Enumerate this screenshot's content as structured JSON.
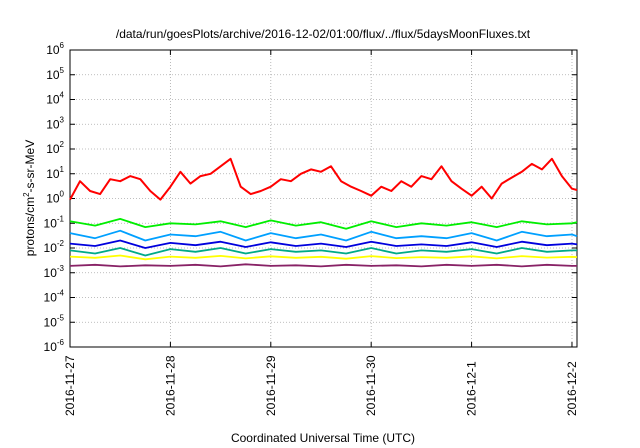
{
  "chart_data": {
    "type": "line",
    "title": "/data/run/goesPlots/archive/2016-12-02/01:00/flux/../flux/5daysMoonFluxes.txt",
    "xlabel": "Coordinated Universal Time (UTC)",
    "ylabel_parts": {
      "base": "protons/cm",
      "sup": "2",
      "rest": "-s-sr-MeV"
    },
    "y_scale": "log",
    "ylim": [
      1e-06,
      1000000.0
    ],
    "y_ticks": [
      {
        "base": "10",
        "exp": "-6",
        "value": 1e-06
      },
      {
        "base": "10",
        "exp": "-5",
        "value": 1e-05
      },
      {
        "base": "10",
        "exp": "-4",
        "value": 0.0001
      },
      {
        "base": "10",
        "exp": "-3",
        "value": 0.001
      },
      {
        "base": "10",
        "exp": "-2",
        "value": 0.01
      },
      {
        "base": "10",
        "exp": "-1",
        "value": 0.1
      },
      {
        "base": "10",
        "exp": "0",
        "value": 1
      },
      {
        "base": "10",
        "exp": "1",
        "value": 10
      },
      {
        "base": "10",
        "exp": "2",
        "value": 100
      },
      {
        "base": "10",
        "exp": "3",
        "value": 1000
      },
      {
        "base": "10",
        "exp": "4",
        "value": 10000
      },
      {
        "base": "10",
        "exp": "5",
        "value": 100000
      },
      {
        "base": "10",
        "exp": "6",
        "value": 1000000
      }
    ],
    "x_tick_labels": [
      "2016-11-27",
      "2016-11-28",
      "2016-11-29",
      "2016-11-30",
      "2016-12-1",
      "2016-12-2"
    ],
    "x_tick_days": [
      0,
      1,
      2,
      3,
      4,
      5
    ],
    "xlim_days": [
      0,
      5.05
    ],
    "grid": true,
    "legend": "none",
    "series": [
      {
        "color": "#ff0000",
        "days": [
          0,
          0.1,
          0.2,
          0.3,
          0.4,
          0.5,
          0.6,
          0.7,
          0.8,
          0.9,
          1.0,
          1.1,
          1.2,
          1.3,
          1.4,
          1.5,
          1.6,
          1.7,
          1.8,
          1.9,
          2.0,
          2.1,
          2.2,
          2.3,
          2.4,
          2.5,
          2.6,
          2.7,
          2.8,
          2.9,
          3.0,
          3.1,
          3.2,
          3.3,
          3.4,
          3.5,
          3.6,
          3.7,
          3.8,
          3.9,
          4.0,
          4.1,
          4.2,
          4.3,
          4.4,
          4.5,
          4.6,
          4.7,
          4.8,
          4.9,
          5.0,
          5.05
        ],
        "values": [
          0.9,
          5,
          2,
          1.5,
          6,
          5,
          8,
          6,
          2,
          0.9,
          3,
          12,
          4,
          8,
          10,
          20,
          40,
          3,
          1.5,
          2,
          3,
          6,
          5,
          10,
          15,
          12,
          20,
          5,
          3,
          2,
          1.3,
          3,
          2,
          5,
          3,
          8,
          6,
          20,
          5,
          2.5,
          1.3,
          3,
          1,
          4,
          7,
          12,
          25,
          15,
          40,
          8,
          2.5,
          2.2
        ]
      },
      {
        "color": "#00ee00",
        "days": [
          0,
          0.25,
          0.5,
          0.75,
          1.0,
          1.25,
          1.5,
          1.75,
          2.0,
          2.25,
          2.5,
          2.75,
          3.0,
          3.25,
          3.5,
          3.75,
          4.0,
          4.25,
          4.5,
          4.75,
          5.0,
          5.05
        ],
        "values": [
          0.12,
          0.08,
          0.15,
          0.07,
          0.1,
          0.09,
          0.12,
          0.07,
          0.13,
          0.08,
          0.11,
          0.06,
          0.12,
          0.07,
          0.1,
          0.08,
          0.11,
          0.07,
          0.12,
          0.09,
          0.1,
          0.11
        ]
      },
      {
        "color": "#00a0ff",
        "days": [
          0,
          0.25,
          0.5,
          0.75,
          1.0,
          1.25,
          1.5,
          1.75,
          2.0,
          2.25,
          2.5,
          2.75,
          3.0,
          3.25,
          3.5,
          3.75,
          4.0,
          4.25,
          4.5,
          4.75,
          5.0,
          5.05
        ],
        "values": [
          0.04,
          0.025,
          0.05,
          0.02,
          0.035,
          0.03,
          0.045,
          0.02,
          0.04,
          0.025,
          0.035,
          0.02,
          0.045,
          0.025,
          0.03,
          0.025,
          0.04,
          0.02,
          0.045,
          0.03,
          0.035,
          0.03
        ]
      },
      {
        "color": "#0000dd",
        "days": [
          0,
          0.25,
          0.5,
          0.75,
          1.0,
          1.25,
          1.5,
          1.75,
          2.0,
          2.25,
          2.5,
          2.75,
          3.0,
          3.25,
          3.5,
          3.75,
          4.0,
          4.25,
          4.5,
          4.75,
          5.0,
          5.05
        ],
        "values": [
          0.015,
          0.012,
          0.02,
          0.01,
          0.016,
          0.013,
          0.018,
          0.011,
          0.017,
          0.012,
          0.015,
          0.011,
          0.018,
          0.012,
          0.014,
          0.012,
          0.017,
          0.011,
          0.018,
          0.013,
          0.015,
          0.014
        ]
      },
      {
        "color": "#00aa88",
        "days": [
          0,
          0.25,
          0.5,
          0.75,
          1.0,
          1.25,
          1.5,
          1.75,
          2.0,
          2.25,
          2.5,
          2.75,
          3.0,
          3.25,
          3.5,
          3.75,
          4.0,
          4.25,
          4.5,
          4.75,
          5.0,
          5.05
        ],
        "values": [
          0.008,
          0.006,
          0.01,
          0.005,
          0.009,
          0.007,
          0.01,
          0.006,
          0.009,
          0.007,
          0.008,
          0.006,
          0.01,
          0.006,
          0.008,
          0.007,
          0.009,
          0.006,
          0.01,
          0.007,
          0.008,
          0.008
        ]
      },
      {
        "color": "#ffff00",
        "days": [
          0,
          0.25,
          0.5,
          0.75,
          1.0,
          1.25,
          1.5,
          1.75,
          2.0,
          2.25,
          2.5,
          2.75,
          3.0,
          3.25,
          3.5,
          3.75,
          4.0,
          4.25,
          4.5,
          4.75,
          5.0,
          5.05
        ],
        "values": [
          0.0045,
          0.004,
          0.005,
          0.0035,
          0.0045,
          0.004,
          0.0048,
          0.0038,
          0.0046,
          0.004,
          0.0044,
          0.0037,
          0.0047,
          0.0039,
          0.0043,
          0.004,
          0.0046,
          0.0038,
          0.0047,
          0.0041,
          0.0044,
          0.0043
        ]
      },
      {
        "color": "#882266",
        "days": [
          0,
          0.25,
          0.5,
          0.75,
          1.0,
          1.25,
          1.5,
          1.75,
          2.0,
          2.25,
          2.5,
          2.75,
          3.0,
          3.25,
          3.5,
          3.75,
          4.0,
          4.25,
          4.5,
          4.75,
          5.0,
          5.05
        ],
        "values": [
          0.0019,
          0.0021,
          0.0018,
          0.002,
          0.0019,
          0.0021,
          0.0018,
          0.0022,
          0.0019,
          0.002,
          0.0018,
          0.0021,
          0.0019,
          0.002,
          0.0018,
          0.0021,
          0.0019,
          0.0021,
          0.0018,
          0.0021,
          0.0019,
          0.0019
        ]
      }
    ]
  }
}
